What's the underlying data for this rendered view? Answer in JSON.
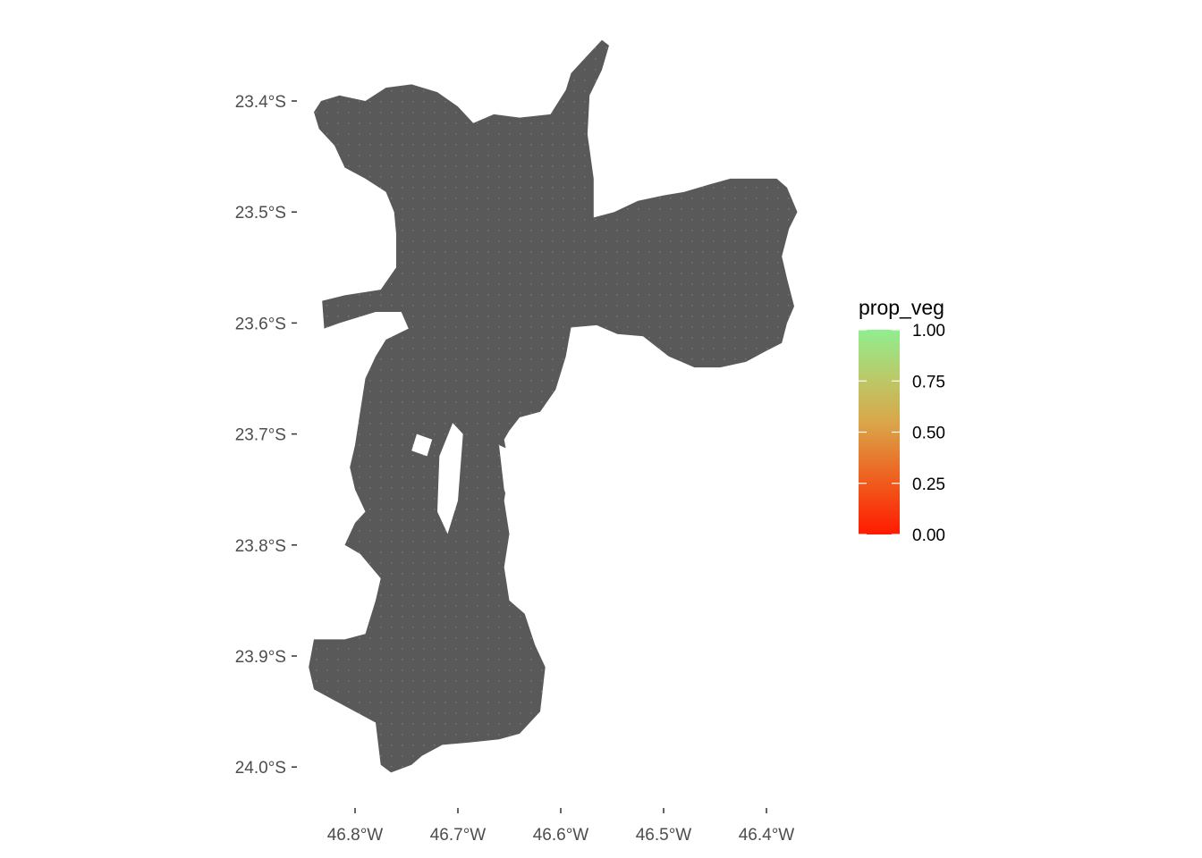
{
  "chart_data": {
    "type": "map",
    "title": "",
    "xlabel": "",
    "ylabel": "",
    "x_ticks": [
      {
        "value": -46.8,
        "label": "46.8°W"
      },
      {
        "value": -46.7,
        "label": "46.7°W"
      },
      {
        "value": -46.6,
        "label": "46.6°W"
      },
      {
        "value": -46.5,
        "label": "46.5°W"
      },
      {
        "value": -46.4,
        "label": "46.4°W"
      }
    ],
    "y_ticks": [
      {
        "value": -23.4,
        "label": "23.4°S"
      },
      {
        "value": -23.5,
        "label": "23.5°S"
      },
      {
        "value": -23.6,
        "label": "23.6°S"
      },
      {
        "value": -23.7,
        "label": "23.7°S"
      },
      {
        "value": -23.8,
        "label": "23.8°S"
      },
      {
        "value": -23.9,
        "label": "23.9°S"
      },
      {
        "value": -24.0,
        "label": "24.0°S"
      }
    ],
    "region_fill": "#595959",
    "grid_dot_color": "#7a7a7a",
    "background": "#ffffff",
    "legend": {
      "title": "prop_veg",
      "placement": "right",
      "range": [
        0,
        1
      ],
      "breaks": [
        {
          "value": 1.0,
          "label": "1.00"
        },
        {
          "value": 0.75,
          "label": "0.75"
        },
        {
          "value": 0.5,
          "label": "0.50"
        },
        {
          "value": 0.25,
          "label": "0.25"
        },
        {
          "value": 0.0,
          "label": "0.00"
        }
      ],
      "color_low": "#ff1a00",
      "color_mid": "#d9a74a",
      "color_high": "#90ee90"
    }
  }
}
